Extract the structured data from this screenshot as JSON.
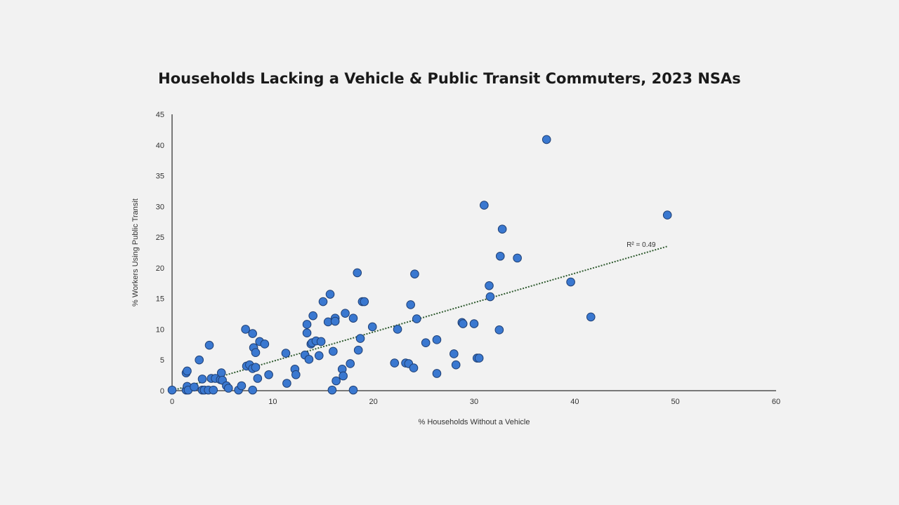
{
  "chart_data": {
    "type": "scatter",
    "title": "Households Lacking a Vehicle & Public Transit Commuters, 2023 NSAs",
    "xlabel": "% Households Without a Vehicle",
    "ylabel": "% Workers Using Public Transit",
    "xlim": [
      0,
      60
    ],
    "ylim": [
      0,
      45
    ],
    "x_ticks": [
      "0",
      "10",
      "20",
      "30",
      "40",
      "50",
      "60"
    ],
    "y_ticks": [
      "0",
      "5",
      "10",
      "15",
      "20",
      "25",
      "30",
      "35",
      "40",
      "45"
    ],
    "grid": false,
    "legend": "none",
    "marker_color": "#3a78d0",
    "marker_edge_color": "#1f3f73",
    "trendline": {
      "type": "linear",
      "label": "R² = 0.49",
      "from": [
        0,
        0
      ],
      "to": [
        49.2,
        23.5
      ],
      "color": "#2e5a2e"
    },
    "points": [
      [
        0.0,
        0.1
      ],
      [
        1.4,
        0.1
      ],
      [
        1.5,
        0.7
      ],
      [
        1.6,
        0.1
      ],
      [
        1.4,
        2.9
      ],
      [
        1.5,
        3.2
      ],
      [
        2.2,
        0.6
      ],
      [
        2.7,
        5.0
      ],
      [
        3.0,
        1.9
      ],
      [
        3.0,
        0.1
      ],
      [
        3.2,
        0.1
      ],
      [
        3.6,
        0.1
      ],
      [
        3.7,
        7.4
      ],
      [
        3.9,
        2.0
      ],
      [
        4.1,
        0.1
      ],
      [
        4.3,
        2.0
      ],
      [
        4.8,
        1.8
      ],
      [
        4.9,
        2.9
      ],
      [
        5.0,
        1.7
      ],
      [
        5.4,
        0.8
      ],
      [
        5.6,
        0.4
      ],
      [
        6.6,
        0.1
      ],
      [
        6.9,
        0.8
      ],
      [
        7.3,
        10.0
      ],
      [
        7.4,
        4.0
      ],
      [
        7.7,
        4.2
      ],
      [
        8.0,
        3.6
      ],
      [
        8.0,
        9.3
      ],
      [
        8.1,
        7.0
      ],
      [
        8.0,
        0.1
      ],
      [
        8.3,
        6.2
      ],
      [
        8.3,
        3.8
      ],
      [
        8.5,
        2.0
      ],
      [
        8.7,
        8.0
      ],
      [
        9.2,
        7.6
      ],
      [
        9.6,
        2.6
      ],
      [
        11.3,
        6.1
      ],
      [
        11.4,
        1.2
      ],
      [
        12.2,
        3.5
      ],
      [
        12.3,
        2.6
      ],
      [
        13.2,
        5.8
      ],
      [
        13.4,
        10.8
      ],
      [
        13.4,
        9.4
      ],
      [
        13.6,
        5.1
      ],
      [
        13.8,
        7.6
      ],
      [
        13.9,
        7.8
      ],
      [
        14.0,
        12.2
      ],
      [
        14.3,
        8.1
      ],
      [
        14.6,
        5.7
      ],
      [
        14.8,
        8.0
      ],
      [
        15.0,
        14.5
      ],
      [
        15.5,
        11.2
      ],
      [
        15.7,
        15.7
      ],
      [
        15.9,
        0.1
      ],
      [
        16.0,
        6.4
      ],
      [
        16.2,
        11.8
      ],
      [
        16.3,
        1.6
      ],
      [
        16.2,
        11.3
      ],
      [
        16.9,
        3.5
      ],
      [
        17.0,
        2.4
      ],
      [
        17.2,
        12.6
      ],
      [
        17.7,
        4.4
      ],
      [
        18.0,
        11.8
      ],
      [
        18.0,
        0.1
      ],
      [
        18.4,
        19.2
      ],
      [
        18.5,
        6.6
      ],
      [
        18.7,
        8.5
      ],
      [
        18.9,
        14.5
      ],
      [
        19.1,
        14.5
      ],
      [
        19.9,
        10.4
      ],
      [
        22.1,
        4.5
      ],
      [
        22.4,
        10.0
      ],
      [
        23.2,
        4.5
      ],
      [
        23.5,
        4.4
      ],
      [
        23.7,
        14.0
      ],
      [
        24.0,
        3.7
      ],
      [
        24.1,
        19.0
      ],
      [
        24.3,
        11.7
      ],
      [
        25.2,
        7.8
      ],
      [
        26.3,
        8.3
      ],
      [
        26.3,
        2.8
      ],
      [
        28.0,
        6.0
      ],
      [
        28.2,
        4.2
      ],
      [
        28.8,
        11.1
      ],
      [
        28.9,
        10.9
      ],
      [
        30.0,
        10.9
      ],
      [
        30.3,
        5.3
      ],
      [
        30.5,
        5.3
      ],
      [
        31.0,
        30.2
      ],
      [
        31.5,
        17.1
      ],
      [
        31.6,
        15.3
      ],
      [
        32.5,
        9.9
      ],
      [
        32.6,
        21.9
      ],
      [
        32.8,
        26.3
      ],
      [
        34.3,
        21.6
      ],
      [
        37.2,
        40.9
      ],
      [
        39.6,
        17.7
      ],
      [
        41.6,
        12.0
      ],
      [
        49.2,
        28.6
      ]
    ]
  }
}
